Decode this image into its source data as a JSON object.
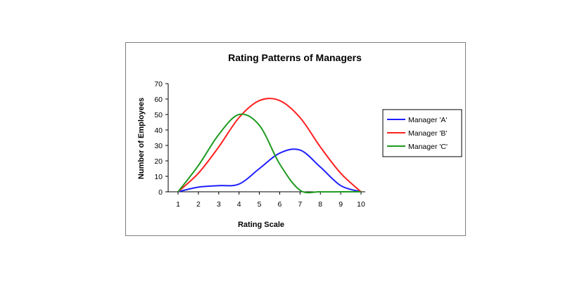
{
  "chart_data": {
    "type": "line",
    "title": "Rating Patterns of Managers",
    "xlabel": "Rating Scale",
    "ylabel": "Number of Employees",
    "x": [
      1,
      2,
      3,
      4,
      5,
      6,
      7,
      8,
      9,
      10
    ],
    "xlim": [
      1,
      10
    ],
    "ylim": [
      0,
      70
    ],
    "yticks": [
      0,
      10,
      20,
      30,
      40,
      50,
      60,
      70
    ],
    "grid": false,
    "legend_position": "right",
    "series": [
      {
        "name": "Manager 'A'",
        "color": "#1f1fff",
        "values": [
          0,
          3,
          4,
          5,
          15,
          25,
          27,
          16,
          4,
          0
        ]
      },
      {
        "name": "Manager 'B'",
        "color": "#ff2020",
        "values": [
          0,
          12,
          29,
          48,
          59,
          59,
          48,
          29,
          12,
          0
        ]
      },
      {
        "name": "Manager 'C'",
        "color": "#1f9a1f",
        "values": [
          0,
          17,
          37,
          50,
          43,
          18,
          1,
          0,
          0,
          0
        ]
      }
    ]
  }
}
